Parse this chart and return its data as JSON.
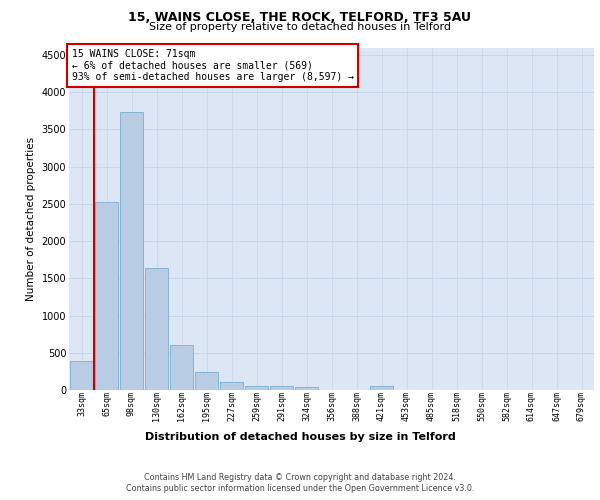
{
  "title1": "15, WAINS CLOSE, THE ROCK, TELFORD, TF3 5AU",
  "title2": "Size of property relative to detached houses in Telford",
  "xlabel": "Distribution of detached houses by size in Telford",
  "ylabel": "Number of detached properties",
  "categories": [
    "33sqm",
    "65sqm",
    "98sqm",
    "130sqm",
    "162sqm",
    "195sqm",
    "227sqm",
    "259sqm",
    "291sqm",
    "324sqm",
    "356sqm",
    "388sqm",
    "421sqm",
    "453sqm",
    "485sqm",
    "518sqm",
    "550sqm",
    "582sqm",
    "614sqm",
    "647sqm",
    "679sqm"
  ],
  "values": [
    390,
    2520,
    3730,
    1640,
    600,
    245,
    105,
    60,
    55,
    35,
    0,
    0,
    60,
    0,
    0,
    0,
    0,
    0,
    0,
    0,
    0
  ],
  "bar_color": "#b8cce4",
  "bar_edge_color": "#7bafd4",
  "property_line_x": 0.5,
  "annotation_line1": "15 WAINS CLOSE: 71sqm",
  "annotation_line2": "← 6% of detached houses are smaller (569)",
  "annotation_line3": "93% of semi-detached houses are larger (8,597) →",
  "annotation_box_color": "#ffffff",
  "annotation_box_edge": "#cc0000",
  "vline_color": "#cc0000",
  "ylim": [
    0,
    4600
  ],
  "yticks": [
    0,
    500,
    1000,
    1500,
    2000,
    2500,
    3000,
    3500,
    4000,
    4500
  ],
  "footer1": "Contains HM Land Registry data © Crown copyright and database right 2024.",
  "footer2": "Contains public sector information licensed under the Open Government Licence v3.0.",
  "grid_color": "#c8d4e8",
  "plot_bg_color": "#dce6f5"
}
